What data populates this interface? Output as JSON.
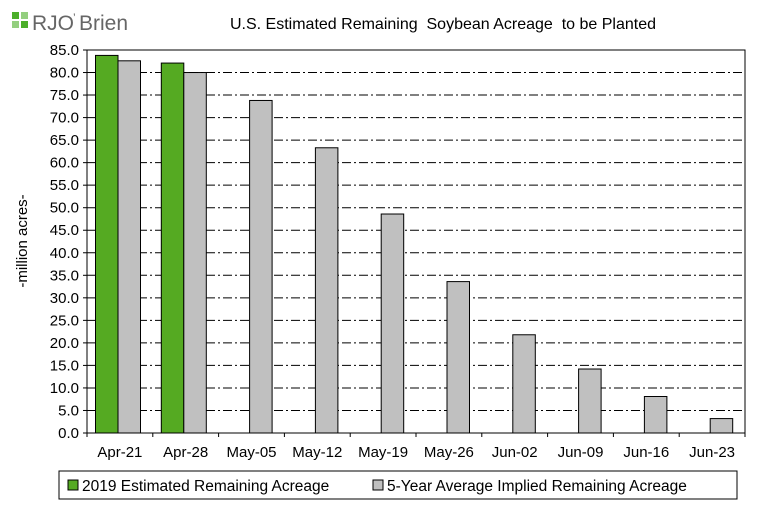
{
  "logo": {
    "text_a": "RJO",
    "text_b": "Brien",
    "mark_color": "#4caf2a"
  },
  "chart_data": {
    "type": "bar",
    "title": "U.S. Estimated Remaining  Soybean Acreage  to be Planted",
    "ylabel": "-million acres-",
    "xlabel": "",
    "ylim": [
      0,
      85
    ],
    "yticks": [
      "0.0",
      "5.0",
      "10.0",
      "15.0",
      "20.0",
      "25.0",
      "30.0",
      "35.0",
      "40.0",
      "45.0",
      "50.0",
      "55.0",
      "60.0",
      "65.0",
      "70.0",
      "75.0",
      "80.0",
      "85.0"
    ],
    "categories": [
      "Apr-21",
      "Apr-28",
      "May-05",
      "May-12",
      "May-19",
      "May-26",
      "Jun-02",
      "Jun-09",
      "Jun-16",
      "Jun-23"
    ],
    "grid": true,
    "legend_position": "bottom",
    "series": [
      {
        "name": "2019 Estimated Remaining Acreage",
        "color": "#55aa22",
        "values": [
          83.8,
          82.1,
          null,
          null,
          null,
          null,
          null,
          null,
          null,
          null
        ]
      },
      {
        "name": "5-Year Average Implied Remaining Acreage",
        "color": "#c0c0c0",
        "values": [
          82.6,
          80.0,
          73.8,
          63.3,
          48.6,
          33.6,
          21.8,
          14.2,
          8.1,
          3.2
        ]
      }
    ]
  }
}
